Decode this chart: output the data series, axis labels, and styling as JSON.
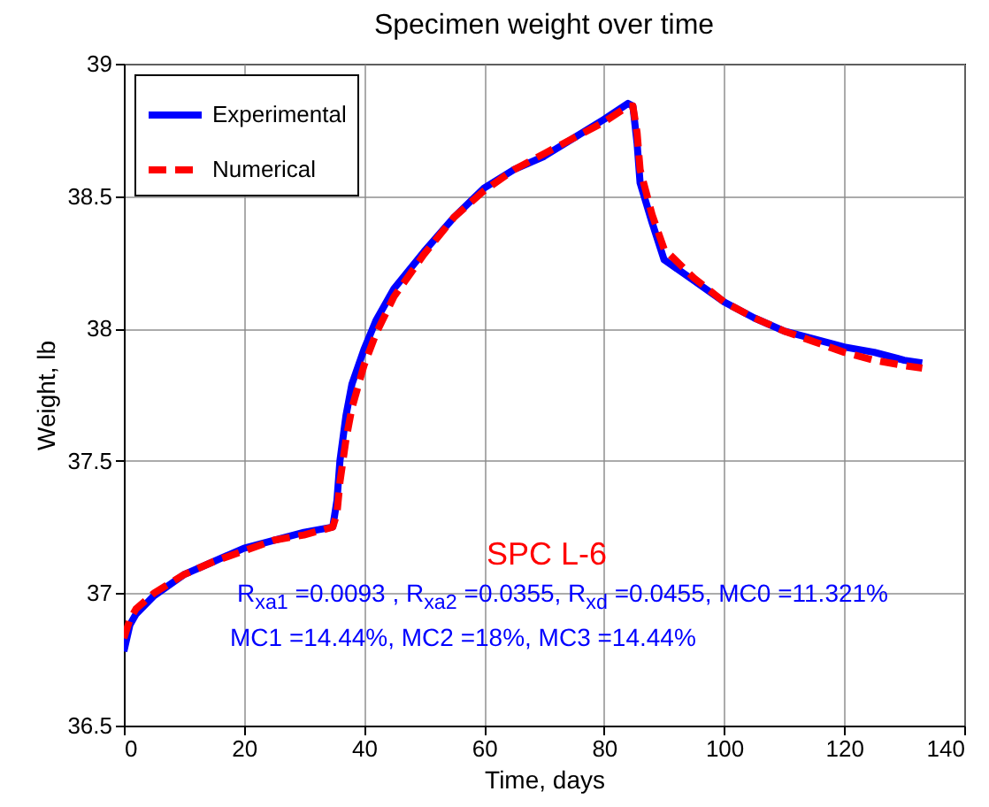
{
  "chart_data": {
    "type": "line",
    "title": "Specimen weight over time",
    "xlabel": "Time, days",
    "ylabel": "Weight, lb",
    "xlim": [
      0,
      140
    ],
    "xticks": [
      0,
      20,
      40,
      60,
      80,
      100,
      120,
      140
    ],
    "ylim": [
      36.5,
      39
    ],
    "yticks": [
      36.5,
      37,
      37.5,
      38,
      38.5,
      39
    ],
    "grid": true,
    "legend": "top left",
    "annotations": [
      "SPC L-6",
      "R$_{xa1}$ =0.0093 , R$_{xa2}$ =0.0355, R$_{xd}$ =0.0455,  MC0 =11.321%",
      "MC1 =14.44%,  MC2 =18%,  MC3 =14.44%"
    ],
    "series": [
      {
        "name": "Experimental",
        "color": "#0000ff",
        "line_style": "solid",
        "x": [
          0,
          1,
          2,
          5,
          10,
          15,
          20,
          25,
          30,
          34.8,
          35.5,
          36,
          37,
          38,
          40,
          42,
          45,
          50,
          55,
          60,
          65,
          70,
          75,
          80,
          84,
          84.8,
          85.5,
          86,
          88,
          90,
          95,
          100,
          105,
          110,
          115,
          120,
          125,
          130,
          133
        ],
        "values": [
          36.78,
          36.88,
          36.92,
          36.99,
          37.07,
          37.12,
          37.17,
          37.2,
          37.23,
          37.25,
          37.35,
          37.5,
          37.67,
          37.79,
          37.92,
          38.03,
          38.15,
          38.29,
          38.42,
          38.53,
          38.6,
          38.65,
          38.72,
          38.79,
          38.85,
          38.84,
          38.7,
          38.55,
          38.4,
          38.26,
          38.18,
          38.1,
          38.04,
          37.99,
          37.96,
          37.93,
          37.91,
          37.88,
          37.87
        ]
      },
      {
        "name": "Numerical",
        "color": "#ff0000",
        "line_style": "dashed",
        "x": [
          0,
          1,
          2,
          5,
          10,
          15,
          20,
          25,
          30,
          34.8,
          35.5,
          36,
          37,
          38,
          40,
          42,
          45,
          50,
          55,
          60,
          65,
          70,
          75,
          80,
          84,
          84.8,
          85.5,
          86,
          88,
          90,
          95,
          100,
          105,
          110,
          115,
          120,
          125,
          130,
          133
        ],
        "values": [
          36.83,
          36.9,
          36.94,
          37.0,
          37.07,
          37.12,
          37.16,
          37.2,
          37.22,
          37.25,
          37.3,
          37.42,
          37.58,
          37.7,
          37.86,
          37.98,
          38.12,
          38.28,
          38.42,
          38.52,
          38.6,
          38.66,
          38.72,
          38.78,
          38.84,
          38.84,
          38.74,
          38.6,
          38.43,
          38.3,
          38.19,
          38.1,
          38.04,
          37.99,
          37.95,
          37.91,
          37.88,
          37.86,
          37.85
        ]
      }
    ]
  }
}
